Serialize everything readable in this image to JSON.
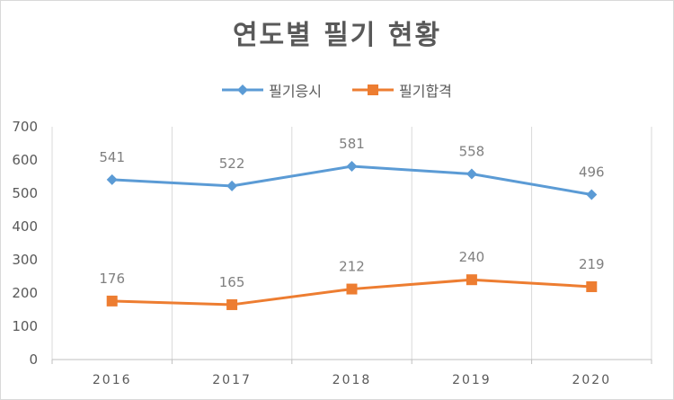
{
  "chart_data": {
    "type": "line",
    "title": "연도별 필기 현황",
    "categories": [
      "2016",
      "2017",
      "2018",
      "2019",
      "2020"
    ],
    "series": [
      {
        "name": "필기응시",
        "values": [
          541,
          522,
          581,
          558,
          496
        ],
        "color": "#5b9bd5",
        "marker": "diamond"
      },
      {
        "name": "필기합격",
        "values": [
          176,
          165,
          212,
          240,
          219
        ],
        "color": "#ed7d31",
        "marker": "square"
      }
    ],
    "ylim": [
      0,
      700
    ],
    "yticks": [
      0,
      100,
      200,
      300,
      400,
      500,
      600,
      700
    ],
    "grid": "vertical",
    "legend": "top",
    "data_labels": true
  }
}
